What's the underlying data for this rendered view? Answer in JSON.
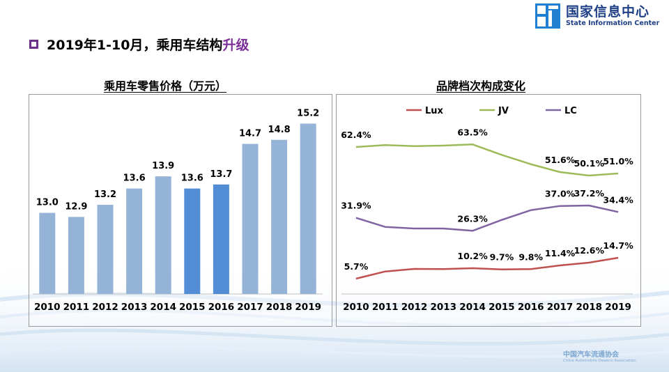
{
  "header": {
    "title_main": "2019年1-10月，乘用车结构",
    "title_accent": "升级"
  },
  "logo": {
    "cn": "国家信息中心",
    "en": "State Information Center"
  },
  "footer": {
    "cn": "中国汽车流通协会",
    "en": "China Automobile Dealers Association"
  },
  "colors": {
    "title_box": "#6b2f8c",
    "title_accent": "#7a2f96",
    "bar_default": "#95b3d7",
    "bar_highlight": "#538dd5",
    "lux": "#c0504d",
    "jv": "#9bbb59",
    "lc": "#8064a2",
    "logo": "#1f3f86"
  },
  "chart_data": [
    {
      "type": "bar",
      "title": "乘用车零售价格（万元）",
      "categories": [
        "2010",
        "2011",
        "2012",
        "2013",
        "2014",
        "2015",
        "2016",
        "2017",
        "2018",
        "2019"
      ],
      "values": [
        13.0,
        12.9,
        13.2,
        13.6,
        13.9,
        13.6,
        13.7,
        14.7,
        14.8,
        15.2
      ],
      "labels": [
        "13.0",
        "12.9",
        "13.2",
        "13.6",
        "13.9",
        "13.6",
        "13.7",
        "14.7",
        "14.8",
        "15.2"
      ],
      "highlight": [
        "2015",
        "2016"
      ],
      "ylim": [
        11.0,
        15.5
      ],
      "grid": false
    },
    {
      "type": "line",
      "title": "品牌档次构成变化",
      "categories": [
        "2010",
        "2011",
        "2012",
        "2013",
        "2014",
        "2015",
        "2016",
        "2017",
        "2018",
        "2019"
      ],
      "series": [
        {
          "name": "Lux",
          "color": "#c0504d",
          "values": [
            5.7,
            8.8,
            9.9,
            9.8,
            10.2,
            9.7,
            9.8,
            11.4,
            12.6,
            14.7
          ],
          "labels": [
            "5.7%",
            "",
            "",
            "",
            "10.2%",
            "9.7%",
            "9.8%",
            "11.4%",
            "12.6%",
            "14.7%"
          ]
        },
        {
          "name": "JV",
          "color": "#9bbb59",
          "values": [
            62.4,
            63.2,
            62.8,
            63.0,
            63.5,
            59.0,
            55.0,
            51.6,
            50.1,
            51.0
          ],
          "labels": [
            "62.4%",
            "",
            "",
            "",
            "63.5%",
            "",
            "",
            "51.6%",
            "50.1%",
            "51.0%"
          ]
        },
        {
          "name": "LC",
          "color": "#8064a2",
          "values": [
            31.9,
            28.0,
            27.3,
            27.3,
            26.3,
            31.0,
            35.2,
            37.0,
            37.2,
            34.4
          ],
          "labels": [
            "31.9%",
            "",
            "",
            "",
            "26.3%",
            "",
            "",
            "37.0%",
            "37.2%",
            "34.4%"
          ]
        }
      ],
      "ylim": [
        0,
        75
      ],
      "legend": "top",
      "grid": false
    }
  ]
}
